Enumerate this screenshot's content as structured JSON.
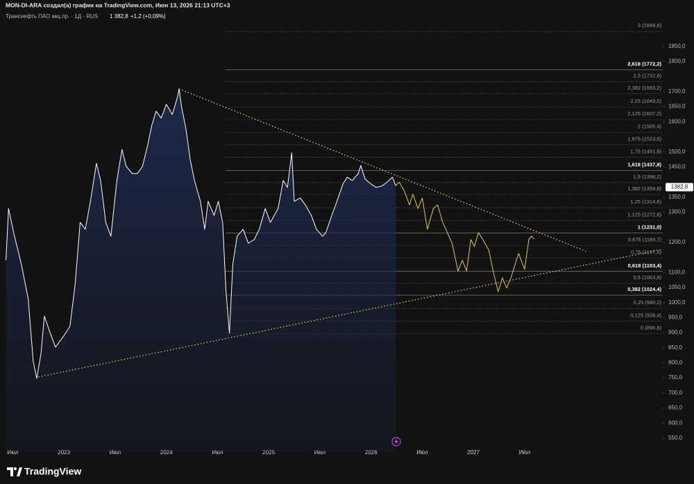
{
  "header": {
    "attribution": "MON-DI-ARA создал(а) график на TradingView.com, Июн 13, 2026 21:13 UTC+3",
    "symbol": "Транснефть ПАО акц.пр. · 1Д · RUS",
    "price": "1 382,8",
    "change": "+1,2 (+0,09%)"
  },
  "chart_data": {
    "type": "line",
    "xlim": [
      4.5,
      82.2
    ],
    "ylim": [
      506,
      2004
    ],
    "xticks": [
      {
        "value": 6,
        "label": "Июл"
      },
      {
        "value": 12,
        "label": "2023"
      },
      {
        "value": 18,
        "label": "Июл"
      },
      {
        "value": 24,
        "label": "2024"
      },
      {
        "value": 30,
        "label": "Июл"
      },
      {
        "value": 36,
        "label": "2025"
      },
      {
        "value": 42,
        "label": "Июл"
      },
      {
        "value": 48,
        "label": "2026"
      },
      {
        "value": 54,
        "label": "Июл"
      },
      {
        "value": 60,
        "label": "2027"
      },
      {
        "value": 66,
        "label": "Июл"
      }
    ],
    "yticks": [
      {
        "value": 550,
        "label": "550,0"
      },
      {
        "value": 600,
        "label": "600,0"
      },
      {
        "value": 650,
        "label": "650,0"
      },
      {
        "value": 700,
        "label": "700,0"
      },
      {
        "value": 750,
        "label": "750,0"
      },
      {
        "value": 800,
        "label": "800,0"
      },
      {
        "value": 850,
        "label": "850,0"
      },
      {
        "value": 900,
        "label": "900,0"
      },
      {
        "value": 950,
        "label": "950,0"
      },
      {
        "value": 1000,
        "label": "1000,0"
      },
      {
        "value": 1050,
        "label": "1050,0"
      },
      {
        "value": 1100,
        "label": "1100,0"
      },
      {
        "value": 1200,
        "label": "1200,0"
      },
      {
        "value": 1300,
        "label": "1300,0"
      },
      {
        "value": 1350,
        "label": "1350,0"
      },
      {
        "value": 1450,
        "label": "1450,0"
      },
      {
        "value": 1500,
        "label": "1500,0"
      },
      {
        "value": 1600,
        "label": "1600,0"
      },
      {
        "value": 1650,
        "label": "1650,0"
      },
      {
        "value": 1700,
        "label": "1700,0"
      },
      {
        "value": 1800,
        "label": "1800,0"
      },
      {
        "value": 1850,
        "label": "1850,0"
      }
    ],
    "series": [
      {
        "color": "#ffffff",
        "area": true,
        "style": "solid",
        "x": [
          5.2,
          5.5,
          6.2,
          7.0,
          7.8,
          8.4,
          8.8,
          9.3,
          9.7,
          10.4,
          11.0,
          11.9,
          12.7,
          13.3,
          13.9,
          14.5,
          15.1,
          15.8,
          16.3,
          16.9,
          17.5,
          18.2,
          18.8,
          19.3,
          20.0,
          20.6,
          21.2,
          21.8,
          22.3,
          22.8,
          23.4,
          24.0,
          24.7,
          25.3,
          25.5,
          25.8,
          26.3,
          26.8,
          27.3,
          28.0,
          28.5,
          28.9,
          29.6,
          30.1,
          30.6,
          31.0,
          31.4,
          31.8,
          32.3,
          33.0,
          33.6,
          34.3,
          34.9,
          35.6,
          36.2,
          37.1,
          37.7,
          38.2,
          38.7,
          39.0,
          39.7,
          40.3,
          41.0,
          41.6,
          42.3,
          42.7,
          43.4,
          44.0,
          44.7,
          45.2,
          45.8,
          46.5,
          46.8,
          47.3,
          48.0,
          48.6,
          49.3,
          49.9,
          50.5,
          50.9
        ],
        "values": [
          1140,
          1312,
          1220,
          1128,
          1013,
          805,
          748,
          829,
          955,
          898,
          852,
          886,
          921,
          1059,
          1266,
          1243,
          1336,
          1462,
          1405,
          1266,
          1220,
          1405,
          1508,
          1452,
          1428,
          1428,
          1452,
          1520,
          1589,
          1635,
          1612,
          1658,
          1624,
          1681,
          1709,
          1647,
          1577,
          1474,
          1405,
          1336,
          1243,
          1336,
          1289,
          1336,
          1266,
          1036,
          898,
          1128,
          1220,
          1243,
          1197,
          1209,
          1243,
          1312,
          1266,
          1312,
          1405,
          1382,
          1497,
          1336,
          1347,
          1324,
          1289,
          1243,
          1220,
          1232,
          1289,
          1336,
          1393,
          1416,
          1405,
          1428,
          1455,
          1410,
          1393,
          1382,
          1387,
          1400,
          1416,
          1387
        ]
      },
      {
        "color": "#e2c94a",
        "area": false,
        "style": "solid",
        "x": [
          50.9,
          51.3,
          51.9,
          52.5,
          52.9,
          53.5,
          54.0,
          54.6,
          55.3,
          55.8,
          56.4,
          57.5,
          58.2,
          58.7,
          59.2,
          59.7,
          60.1,
          60.6,
          61.1,
          61.8,
          62.4,
          62.9,
          63.4,
          63.9,
          64.4,
          64.9,
          65.3,
          66.0,
          66.5,
          66.8
        ],
        "values": [
          1387,
          1400,
          1370,
          1324,
          1359,
          1312,
          1347,
          1243,
          1312,
          1324,
          1266,
          1197,
          1105,
          1140,
          1105,
          1209,
          1186,
          1232,
          1209,
          1174,
          1094,
          1036,
          1082,
          1048,
          1082,
          1128,
          1163,
          1110,
          1209,
          1220
        ]
      },
      {
        "color": "#e8e23c",
        "area": false,
        "style": "dotted",
        "x": [
          25.5,
          73.2
        ],
        "values": [
          1709,
          1170
        ]
      },
      {
        "color": "#e8e23c",
        "area": false,
        "style": "dotted",
        "x": [
          9.0,
          82.2
        ],
        "values": [
          753,
          1177
        ]
      }
    ],
    "fib_levels": [
      {
        "value": 896.8,
        "label": "0 (896,8)",
        "bold": false
      },
      {
        "value": 938.4,
        "label": "0,125 (938,4)",
        "bold": false
      },
      {
        "value": 980.2,
        "label": "0,25 (980,2)",
        "bold": false
      },
      {
        "value": 1024.4,
        "label": "0,382 (1024,4)",
        "bold": true
      },
      {
        "value": 1063.8,
        "label": "0,5 (1063,8)",
        "bold": false
      },
      {
        "value": 1103.4,
        "label": "0,618 (1103,4)",
        "bold": true
      },
      {
        "value": 1147.4,
        "label": "0,75 (1147,4)",
        "bold": false
      },
      {
        "value": 1189.7,
        "label": "0,875 (1189,7)",
        "bold": false
      },
      {
        "value": 1231.0,
        "label": "1 (1231,0)",
        "bold": true
      },
      {
        "value": 1272.8,
        "label": "1,125 (1272,8)",
        "bold": false
      },
      {
        "value": 1314.6,
        "label": "1,25 (1314,6)",
        "bold": false
      },
      {
        "value": 1358.8,
        "label": "1,382 (1358,8)",
        "bold": false
      },
      {
        "value": 1398.2,
        "label": "1,5 (1398,2)",
        "bold": false
      },
      {
        "value": 1437.8,
        "label": "1,618 (1437,8)",
        "bold": true
      },
      {
        "value": 1481.8,
        "label": "1,75 (1481,8)",
        "bold": false
      },
      {
        "value": 1523.6,
        "label": "1,875 (1523,6)",
        "bold": false
      },
      {
        "value": 1565.4,
        "label": "2 (1565,4)",
        "bold": false
      },
      {
        "value": 1607.2,
        "label": "2,125 (1607,2)",
        "bold": false
      },
      {
        "value": 1649.0,
        "label": "2,25 (1649,0)",
        "bold": false
      },
      {
        "value": 1693.2,
        "label": "2,382 (1693,2)",
        "bold": false
      },
      {
        "value": 1732.6,
        "label": "2,5 (1732,6)",
        "bold": false
      },
      {
        "value": 1772.2,
        "label": "2,618 (1772,2)",
        "bold": true
      },
      {
        "value": 1899.8,
        "label": "3 (1899,8)",
        "bold": false
      }
    ],
    "last_price": {
      "value": 1382.8,
      "label": "1382,8"
    }
  },
  "footer": {
    "brand": "TradingView"
  }
}
